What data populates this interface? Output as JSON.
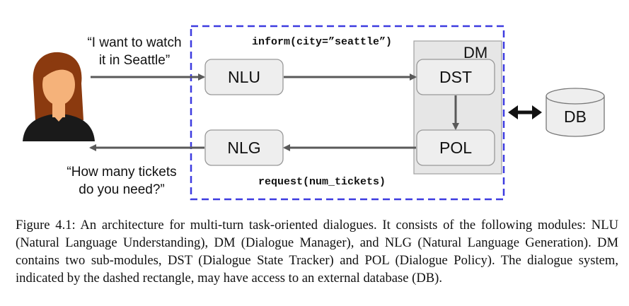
{
  "figure": {
    "user_utterance_lines": [
      "“I want to watch",
      "it in Seattle”"
    ],
    "system_utterance_lines": [
      "“How many tickets",
      "do you need?”"
    ],
    "inform_action": "inform(city=”seattle”)",
    "request_action": "request(num_tickets)",
    "modules": {
      "nlu": "NLU",
      "nlg": "NLG",
      "dm": "DM",
      "dst": "DST",
      "pol": "POL",
      "db": "DB"
    },
    "colors": {
      "dashed_border": "#3d3be0",
      "box_fill": "#eeeeee",
      "box_stroke": "#999999",
      "dm_fill": "#e6e6e6",
      "arrow": "#595959",
      "hair": "#8b3a0f",
      "skin": "#f5b27a",
      "shirt": "#1a1a1a"
    },
    "icons": [
      "user-avatar-icon",
      "database-icon"
    ]
  },
  "caption": "Figure 4.1:  An architecture for multi-turn task-oriented dialogues.  It consists of the following modules: NLU (Natural Language Understanding), DM (Dialogue Manager), and NLG (Natural Language Generation).  DM contains two sub-modules, DST (Dialogue State Tracker) and POL (Dialogue Policy). The dialogue system, indicated by the dashed rectangle, may have access to an external database (DB)."
}
